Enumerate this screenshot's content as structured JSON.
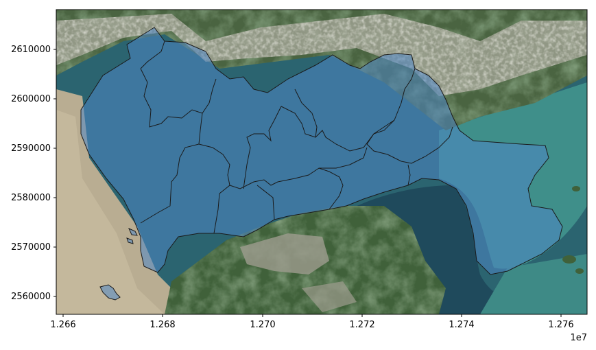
{
  "map": {
    "basemap": "satellite imagery",
    "overlay_fill": "#4f86c6",
    "overlay_opacity": 0.55,
    "boundary_color": "#1a1a1a",
    "colors": {
      "sea_deep": "#1f4a5c",
      "sea_teal": "#3f8f8a",
      "estuary": "#b9ad92",
      "land_green": "#3f5f32",
      "urban": "#a7a79a"
    }
  },
  "axes": {
    "x_ticks": [
      "1.266",
      "1.268",
      "1.270",
      "1.272",
      "1.274",
      "1.276"
    ],
    "x_offset": "1e7",
    "y_ticks": [
      "2610000",
      "2600000",
      "2590000",
      "2580000",
      "2570000",
      "2560000"
    ]
  },
  "chart_data": {
    "type": "map",
    "xlim": [
      12658000,
      12765000
    ],
    "ylim": [
      2556500,
      2618000
    ],
    "grid": false,
    "tick_values": {
      "x": [
        12660000,
        12680000,
        12700000,
        12720000,
        12740000,
        12760000
      ],
      "y": [
        2610000,
        2600000,
        2590000,
        2580000,
        2570000,
        2560000
      ]
    },
    "districts_count": 10
  }
}
